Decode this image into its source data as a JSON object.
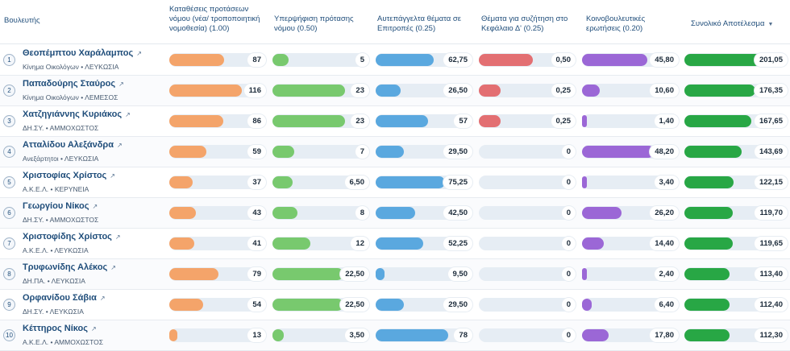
{
  "table": {
    "headers": {
      "mp": "Βουλευτής",
      "bills": "Καταθέσεις προτάσεων νόμου (νέα/ τροποποιητική νομοθεσία) (1.00)",
      "cosign": "Υπερψήφιση πρότασης νόμου (0.50)",
      "committee": "Αυτεπάγγελτα θέματα σε Επιτροπές (0.25)",
      "chapter": "Θέματα για συζήτηση στο Κεφάλαιο Δ' (0.25)",
      "questions": "Κοινοβουλευτικές ερωτήσεις (0.20)",
      "total": "Συνολικό Αποτέλεσμα"
    },
    "sort_icon": "sort-desc-icon",
    "colors": {
      "bills": "#f4a46a",
      "cosign": "#78c96e",
      "committee": "#5aa8df",
      "chapter": "#e36f72",
      "questions": "#9b67d6",
      "total": "#28a745"
    },
    "rows": [
      {
        "rank": "1",
        "name": "Θεοπέμπτου Χαράλαμπος",
        "meta": "Κίνημα Οικολόγων • ΛΕΥΚΩΣΙΑ",
        "bills": "87",
        "bills_f": 0.75,
        "cosign": "5",
        "cosign_f": 0.22,
        "committee": "62,75",
        "committee_f": 0.8,
        "chapter": "0,50",
        "chapter_f": 0.74,
        "questions": "45,80",
        "questions_f": 0.9,
        "total": "201,05",
        "total_f": 1.0
      },
      {
        "rank": "2",
        "name": "Παπαδούρης Σταύρος",
        "meta": "Κίνημα Οικολόγων • ΛΕΜΕΣΟΣ",
        "bills": "116",
        "bills_f": 1.0,
        "cosign": "23",
        "cosign_f": 1.0,
        "committee": "26,50",
        "committee_f": 0.35,
        "chapter": "0,25",
        "chapter_f": 0.3,
        "questions": "10,60",
        "questions_f": 0.24,
        "total": "176,35",
        "total_f": 0.88
      },
      {
        "rank": "3",
        "name": "Χατζηγιάννης Κυριάκος",
        "meta": "ΔΗ.ΣΥ. • ΑΜΜΟΧΩΣΤΟΣ",
        "bills": "86",
        "bills_f": 0.74,
        "cosign": "23",
        "cosign_f": 1.0,
        "committee": "57",
        "committee_f": 0.72,
        "chapter": "0,25",
        "chapter_f": 0.3,
        "questions": "1,40",
        "questions_f": 0.03,
        "total": "167,65",
        "total_f": 0.83
      },
      {
        "rank": "4",
        "name": "Ατταλίδου Αλεξάνδρα",
        "meta": "Ανεξάρτητοι • ΛΕΥΚΩΣΙΑ",
        "bills": "59",
        "bills_f": 0.51,
        "cosign": "7",
        "cosign_f": 0.3,
        "committee": "29,50",
        "committee_f": 0.39,
        "chapter": "0",
        "chapter_f": 0,
        "questions": "48,20",
        "questions_f": 1.0,
        "total": "143,69",
        "total_f": 0.71
      },
      {
        "rank": "5",
        "name": "Χριστοφίας Χρίστος",
        "meta": "Α.Κ.Ε.Λ. • ΚΕΡΥΝΕΙΑ",
        "bills": "37",
        "bills_f": 0.32,
        "cosign": "6,50",
        "cosign_f": 0.28,
        "committee": "75,25",
        "committee_f": 0.96,
        "chapter": "0",
        "chapter_f": 0,
        "questions": "3,40",
        "questions_f": 0.07,
        "total": "122,15",
        "total_f": 0.61
      },
      {
        "rank": "6",
        "name": "Γεωργίου Νίκος",
        "meta": "ΔΗ.ΣΥ. • ΑΜΜΟΧΩΣΤΟΣ",
        "bills": "43",
        "bills_f": 0.37,
        "cosign": "8",
        "cosign_f": 0.35,
        "committee": "42,50",
        "committee_f": 0.54,
        "chapter": "0",
        "chapter_f": 0,
        "questions": "26,20",
        "questions_f": 0.54,
        "total": "119,70",
        "total_f": 0.6
      },
      {
        "rank": "7",
        "name": "Χριστοφίδης Χρίστος",
        "meta": "Α.Κ.Ε.Λ. • ΛΕΥΚΩΣΙΑ",
        "bills": "41",
        "bills_f": 0.35,
        "cosign": "12",
        "cosign_f": 0.52,
        "committee": "52,25",
        "committee_f": 0.66,
        "chapter": "0",
        "chapter_f": 0,
        "questions": "14,40",
        "questions_f": 0.3,
        "total": "119,65",
        "total_f": 0.6
      },
      {
        "rank": "8",
        "name": "Τρυφωνίδης Αλέκος",
        "meta": "ΔΗ.ΠΑ. • ΛΕΥΚΩΣΙΑ",
        "bills": "79",
        "bills_f": 0.68,
        "cosign": "22,50",
        "cosign_f": 0.98,
        "committee": "9,50",
        "committee_f": 0.12,
        "chapter": "0",
        "chapter_f": 0,
        "questions": "2,40",
        "questions_f": 0.05,
        "total": "113,40",
        "total_f": 0.56
      },
      {
        "rank": "9",
        "name": "Ορφανίδου Σάβια",
        "meta": "ΔΗ.ΣΥ. • ΛΕΥΚΩΣΙΑ",
        "bills": "54",
        "bills_f": 0.47,
        "cosign": "22,50",
        "cosign_f": 0.98,
        "committee": "29,50",
        "committee_f": 0.39,
        "chapter": "0",
        "chapter_f": 0,
        "questions": "6,40",
        "questions_f": 0.13,
        "total": "112,40",
        "total_f": 0.56
      },
      {
        "rank": "10",
        "name": "Κέττηρος Νίκος",
        "meta": "Α.Κ.Ε.Λ. • ΑΜΜΟΧΩΣΤΟΣ",
        "bills": "13",
        "bills_f": 0.11,
        "cosign": "3,50",
        "cosign_f": 0.15,
        "committee": "78",
        "committee_f": 1.0,
        "chapter": "0",
        "chapter_f": 0,
        "questions": "17,80",
        "questions_f": 0.37,
        "total": "112,30",
        "total_f": 0.56
      }
    ]
  }
}
